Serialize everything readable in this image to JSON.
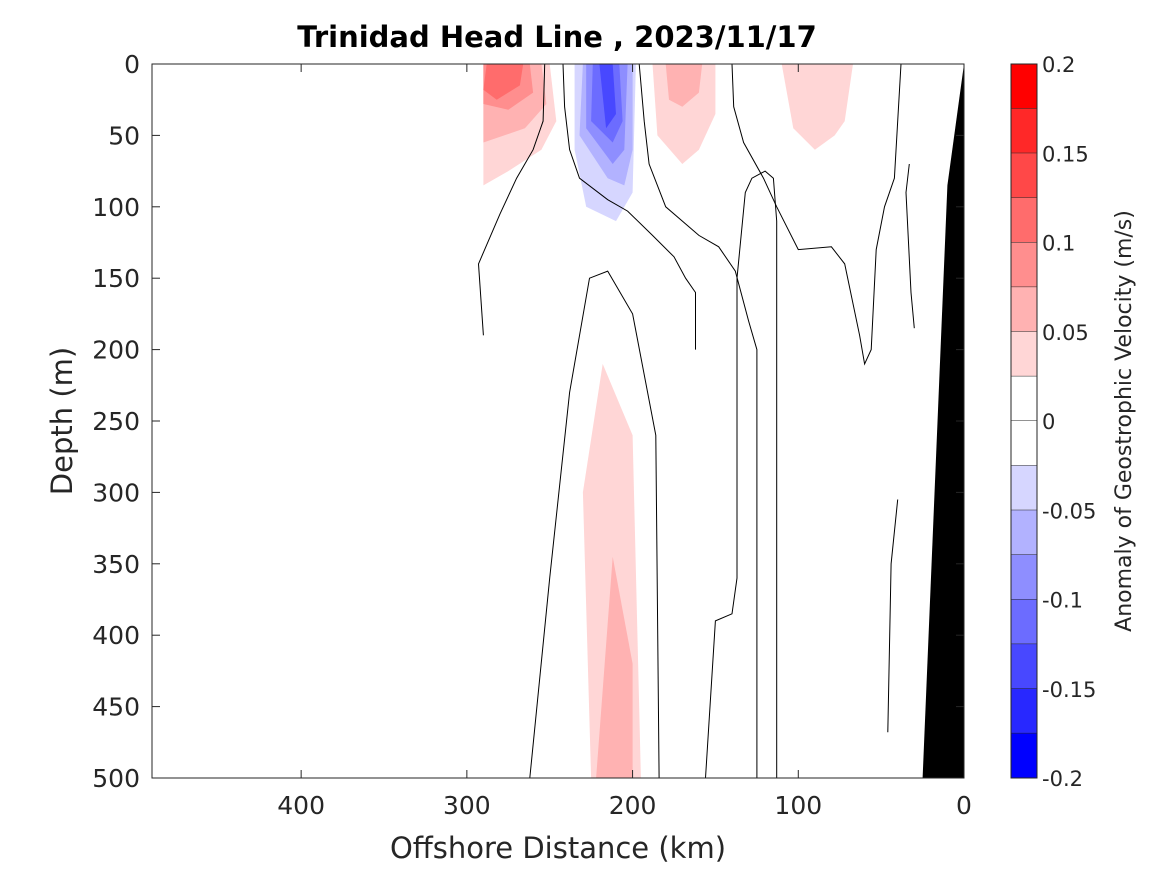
{
  "chart_data": {
    "type": "heatmap",
    "title": "Trinidad Head Line , 2023/11/17",
    "xlabel": "Offshore Distance (km)",
    "ylabel": "Depth (m)",
    "xlim": [
      490,
      0
    ],
    "ylim": [
      0,
      500
    ],
    "x_reversed": true,
    "y_reversed": true,
    "x_ticks": [
      400,
      300,
      200,
      100,
      0
    ],
    "y_ticks": [
      0,
      50,
      100,
      150,
      200,
      250,
      300,
      350,
      400,
      450,
      500
    ],
    "colorbar": {
      "label": "Anomaly of Geostrophic Velocity (m/s)",
      "range": [
        -0.2,
        0.2
      ],
      "ticks": [
        0.2,
        0.15,
        0.1,
        0.05,
        0,
        -0.05,
        -0.1,
        -0.15,
        -0.2
      ],
      "tick_labels": [
        "0.2",
        "0.15",
        "0.1",
        "0.05",
        "0",
        "-0.05",
        "-0.1",
        "-0.15",
        "-0.2"
      ],
      "levels": [
        0.2,
        0.175,
        0.15,
        0.125,
        0.1,
        0.075,
        0.05,
        0.025,
        0,
        -0.025,
        -0.05,
        -0.075,
        -0.1,
        -0.125,
        -0.15,
        -0.175,
        -0.2
      ],
      "colors": [
        "#ff0000",
        "#ff2828",
        "#ff4848",
        "#ff6c6c",
        "#ff8e8e",
        "#ffb2b2",
        "#ffd6d6",
        "#ffffff",
        "#ffffff",
        "#d6d6ff",
        "#b2b2ff",
        "#8e8eff",
        "#6c6cff",
        "#4848ff",
        "#2828ff",
        "#0000ff"
      ]
    },
    "contour_levels": [
      0
    ],
    "contour_color": "#000000",
    "grid": false,
    "land_color": "#000000",
    "land": [
      [
        0,
        0
      ],
      [
        10,
        85
      ],
      [
        25,
        500
      ],
      [
        0,
        500
      ]
    ],
    "regions": [
      {
        "level": 0.025,
        "polygon": [
          [
            290,
            0
          ],
          [
            245,
            0
          ],
          [
            241,
            25
          ],
          [
            243,
            60
          ],
          [
            255,
            75
          ],
          [
            272,
            92
          ],
          [
            290,
            135
          ]
        ]
      },
      {
        "level": 0.05,
        "polygon": [
          [
            290,
            0
          ],
          [
            250,
            0
          ],
          [
            246,
            40
          ],
          [
            255,
            60
          ],
          [
            275,
            75
          ],
          [
            290,
            85
          ]
        ]
      },
      {
        "level": 0.075,
        "polygon": [
          [
            290,
            0
          ],
          [
            255,
            0
          ],
          [
            252,
            28
          ],
          [
            265,
            45
          ],
          [
            290,
            55
          ]
        ]
      },
      {
        "level": 0.1,
        "polygon": [
          [
            290,
            0
          ],
          [
            262,
            0
          ],
          [
            260,
            20
          ],
          [
            275,
            32
          ],
          [
            290,
            28
          ]
        ]
      },
      {
        "level": 0.125,
        "polygon": [
          [
            288,
            0
          ],
          [
            266,
            0
          ],
          [
            268,
            15
          ],
          [
            282,
            25
          ],
          [
            290,
            18
          ]
        ]
      },
      {
        "level": -0.025,
        "polygon": [
          [
            238,
            0
          ],
          [
            236,
            60
          ],
          [
            232,
            100
          ],
          [
            248,
            120
          ],
          [
            275,
            150
          ],
          [
            290,
            185
          ],
          [
            290,
            280
          ],
          [
            278,
            300
          ],
          [
            250,
            240
          ],
          [
            233,
            165
          ],
          [
            200,
            130
          ],
          [
            193,
            100
          ],
          [
            196,
            0
          ]
        ]
      },
      {
        "level": -0.05,
        "polygon": [
          [
            235,
            0
          ],
          [
            235,
            60
          ],
          [
            228,
            100
          ],
          [
            210,
            110
          ],
          [
            200,
            90
          ],
          [
            198,
            0
          ]
        ]
      },
      {
        "level": -0.075,
        "polygon": [
          [
            230,
            0
          ],
          [
            232,
            50
          ],
          [
            215,
            80
          ],
          [
            205,
            85
          ],
          [
            200,
            60
          ],
          [
            200,
            0
          ]
        ]
      },
      {
        "level": -0.1,
        "polygon": [
          [
            228,
            0
          ],
          [
            228,
            45
          ],
          [
            212,
            70
          ],
          [
            205,
            60
          ],
          [
            203,
            0
          ]
        ]
      },
      {
        "level": -0.125,
        "polygon": [
          [
            224,
            0
          ],
          [
            225,
            40
          ],
          [
            212,
            55
          ],
          [
            206,
            40
          ],
          [
            208,
            0
          ]
        ]
      },
      {
        "level": -0.15,
        "polygon": [
          [
            220,
            0
          ],
          [
            216,
            45
          ],
          [
            210,
            35
          ],
          [
            212,
            0
          ]
        ]
      },
      {
        "level": -0.025,
        "polygon": [
          [
            290,
            420
          ],
          [
            287,
            500
          ],
          [
            290,
            500
          ]
        ]
      },
      {
        "level": -0.025,
        "polygon": [
          [
            63,
            390
          ],
          [
            70,
            500
          ],
          [
            53,
            500
          ],
          [
            58,
            440
          ]
        ]
      },
      {
        "level": -0.025,
        "polygon": [
          [
            42,
            0
          ],
          [
            34,
            0
          ],
          [
            32,
            38
          ],
          [
            42,
            30
          ]
        ]
      },
      {
        "level": 0.025,
        "polygon": [
          [
            192,
            0
          ],
          [
            190,
            60
          ],
          [
            186,
            90
          ],
          [
            172,
            100
          ],
          [
            150,
            90
          ],
          [
            140,
            60
          ],
          [
            140,
            0
          ]
        ]
      },
      {
        "level": 0.05,
        "polygon": [
          [
            188,
            0
          ],
          [
            185,
            50
          ],
          [
            170,
            70
          ],
          [
            160,
            60
          ],
          [
            150,
            35
          ],
          [
            150,
            0
          ]
        ]
      },
      {
        "level": 0.075,
        "polygon": [
          [
            180,
            0
          ],
          [
            178,
            25
          ],
          [
            170,
            30
          ],
          [
            160,
            20
          ],
          [
            158,
            0
          ]
        ]
      },
      {
        "level": 0.025,
        "polygon": [
          [
            115,
            0
          ],
          [
            108,
            40
          ],
          [
            104,
            70
          ],
          [
            100,
            90
          ],
          [
            60,
            110
          ],
          [
            55,
            100
          ],
          [
            55,
            0
          ]
        ]
      },
      {
        "level": 0.05,
        "polygon": [
          [
            110,
            0
          ],
          [
            103,
            45
          ],
          [
            90,
            60
          ],
          [
            78,
            50
          ],
          [
            72,
            40
          ],
          [
            67,
            0
          ]
        ]
      },
      {
        "level": 0.025,
        "polygon": [
          [
            250,
            500
          ],
          [
            255,
            300
          ],
          [
            240,
            180
          ],
          [
            215,
            145
          ],
          [
            195,
            250
          ],
          [
            190,
            500
          ]
        ]
      },
      {
        "level": 0.05,
        "polygon": [
          [
            225,
            500
          ],
          [
            230,
            300
          ],
          [
            218,
            210
          ],
          [
            200,
            260
          ],
          [
            195,
            500
          ]
        ]
      },
      {
        "level": 0.075,
        "polygon": [
          [
            222,
            500
          ],
          [
            212,
            345
          ],
          [
            200,
            420
          ],
          [
            200,
            500
          ]
        ]
      },
      {
        "level": 0.025,
        "polygon": [
          [
            42,
            440
          ],
          [
            43,
            460
          ],
          [
            40,
            462
          ],
          [
            40,
            445
          ]
        ]
      },
      {
        "level": 0.025,
        "polygon": [
          [
            34,
            110
          ],
          [
            35,
            130
          ],
          [
            33,
            135
          ],
          [
            33,
            115
          ]
        ]
      }
    ],
    "zero_contours": [
      [
        [
          242,
          0
        ],
        [
          241,
          30
        ],
        [
          238,
          60
        ],
        [
          232,
          80
        ],
        [
          215,
          95
        ],
        [
          203,
          103
        ],
        [
          188,
          120
        ],
        [
          175,
          135
        ],
        [
          168,
          150
        ],
        [
          162,
          160
        ],
        [
          162,
          200
        ]
      ],
      [
        [
          196,
          0
        ],
        [
          193,
          40
        ],
        [
          190,
          70
        ],
        [
          180,
          100
        ],
        [
          160,
          120
        ],
        [
          148,
          128
        ],
        [
          138,
          145
        ],
        [
          130,
          180
        ],
        [
          125,
          200
        ],
        [
          125,
          500
        ]
      ],
      [
        [
          290,
          190
        ],
        [
          293,
          140
        ],
        [
          280,
          105
        ],
        [
          270,
          80
        ],
        [
          260,
          60
        ],
        [
          254,
          40
        ],
        [
          253,
          0
        ]
      ],
      [
        [
          140,
          0
        ],
        [
          139,
          30
        ],
        [
          133,
          55
        ],
        [
          121,
          80
        ],
        [
          113,
          100
        ],
        [
          100,
          130
        ],
        [
          80,
          128
        ],
        [
          72,
          140
        ],
        [
          63,
          190
        ],
        [
          60,
          210
        ],
        [
          56,
          200
        ],
        [
          53,
          130
        ],
        [
          48,
          100
        ],
        [
          42,
          80
        ],
        [
          38,
          0
        ]
      ],
      [
        [
          33,
          70
        ],
        [
          35,
          90
        ],
        [
          32,
          160
        ],
        [
          30,
          185
        ]
      ],
      [
        [
          262,
          500
        ],
        [
          250,
          360
        ],
        [
          238,
          230
        ],
        [
          226,
          150
        ],
        [
          215,
          145
        ],
        [
          200,
          175
        ],
        [
          186,
          260
        ],
        [
          184,
          500
        ]
      ],
      [
        [
          156,
          500
        ],
        [
          150,
          390
        ],
        [
          140,
          385
        ],
        [
          137,
          360
        ],
        [
          137,
          150
        ],
        [
          132,
          90
        ],
        [
          128,
          80
        ],
        [
          120,
          75
        ],
        [
          115,
          80
        ],
        [
          113,
          110
        ],
        [
          113,
          500
        ]
      ],
      [
        [
          46,
          468
        ],
        [
          44,
          350
        ],
        [
          40,
          305
        ]
      ]
    ]
  }
}
